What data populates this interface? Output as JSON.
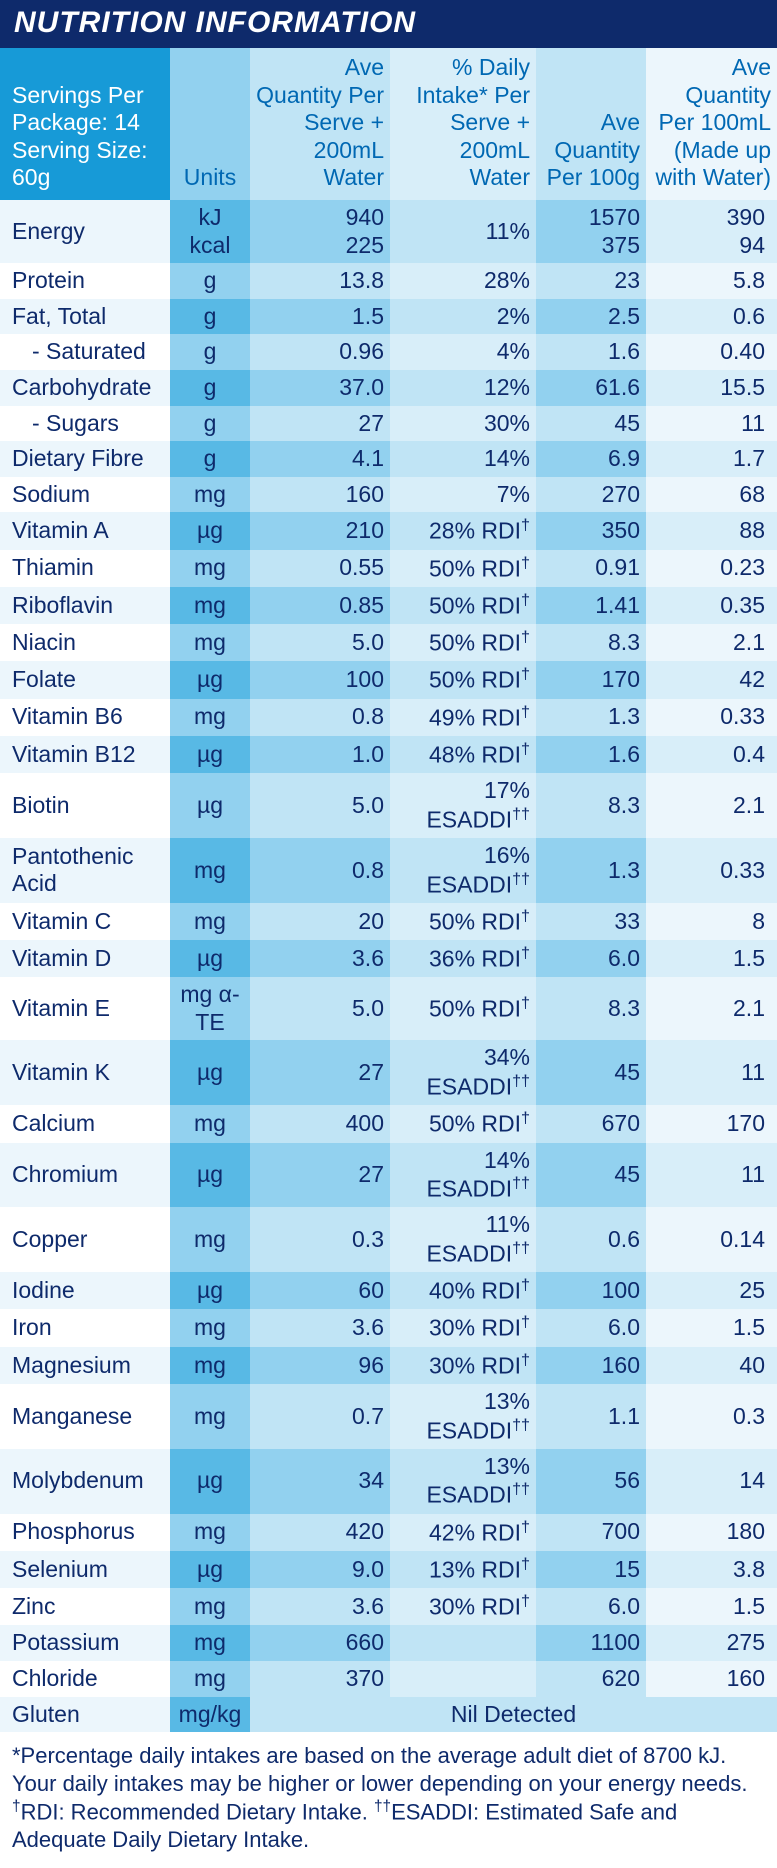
{
  "title": "NUTRITION INFORMATION",
  "servings_line1": "Servings Per Package: 14",
  "servings_line2": "Serving Size: 60g",
  "headers": {
    "units": "Units",
    "c3": "Ave Quantity Per Serve + 200mL Water",
    "c4": "% Daily Intake* Per Serve + 200mL Water",
    "c5": "Ave Quantity Per 100g",
    "c6": "Ave Quantity Per 100mL (Made up with Water)"
  },
  "rows": [
    {
      "name": "Energy",
      "unit": "kJ\nkcal",
      "serve": "940\n225",
      "di": "11%",
      "per100g": "1570\n375",
      "per100ml": "390\n94"
    },
    {
      "name": "Protein",
      "unit": "g",
      "serve": "13.8",
      "di": "28%",
      "per100g": "23",
      "per100ml": "5.8"
    },
    {
      "name": "Fat, Total",
      "unit": "g",
      "serve": "1.5",
      "di": "2%",
      "per100g": "2.5",
      "per100ml": "0.6"
    },
    {
      "name": "   - Saturated",
      "indent": true,
      "unit": "g",
      "serve": "0.96",
      "di": "4%",
      "per100g": "1.6",
      "per100ml": "0.40"
    },
    {
      "name": "Carbohydrate",
      "unit": "g",
      "serve": "37.0",
      "di": "12%",
      "per100g": "61.6",
      "per100ml": "15.5"
    },
    {
      "name": "   - Sugars",
      "indent": true,
      "unit": "g",
      "serve": "27",
      "di": "30%",
      "per100g": "45",
      "per100ml": "11"
    },
    {
      "name": "Dietary Fibre",
      "unit": "g",
      "serve": "4.1",
      "di": "14%",
      "per100g": "6.9",
      "per100ml": "1.7"
    },
    {
      "name": "Sodium",
      "unit": "mg",
      "serve": "160",
      "di": "7%",
      "per100g": "270",
      "per100ml": "68"
    },
    {
      "name": "Vitamin A",
      "unit": "µg",
      "serve": "210",
      "di": "28% RDI†",
      "per100g": "350",
      "per100ml": "88"
    },
    {
      "name": "Thiamin",
      "unit": "mg",
      "serve": "0.55",
      "di": "50% RDI†",
      "per100g": "0.91",
      "per100ml": "0.23"
    },
    {
      "name": "Riboflavin",
      "unit": "mg",
      "serve": "0.85",
      "di": "50% RDI†",
      "per100g": "1.41",
      "per100ml": "0.35"
    },
    {
      "name": "Niacin",
      "unit": "mg",
      "serve": "5.0",
      "di": "50% RDI†",
      "per100g": "8.3",
      "per100ml": "2.1"
    },
    {
      "name": "Folate",
      "unit": "µg",
      "serve": "100",
      "di": "50% RDI†",
      "per100g": "170",
      "per100ml": "42"
    },
    {
      "name": "Vitamin B6",
      "unit": "mg",
      "serve": "0.8",
      "di": "49% RDI†",
      "per100g": "1.3",
      "per100ml": "0.33"
    },
    {
      "name": "Vitamin B12",
      "unit": "µg",
      "serve": "1.0",
      "di": "48% RDI†",
      "per100g": "1.6",
      "per100ml": "0.4"
    },
    {
      "name": "Biotin",
      "unit": "µg",
      "serve": "5.0",
      "di": "17% ESADDI††",
      "per100g": "8.3",
      "per100ml": "2.1"
    },
    {
      "name": "Pantothenic Acid",
      "unit": "mg",
      "serve": "0.8",
      "di": "16% ESADDI††",
      "per100g": "1.3",
      "per100ml": "0.33"
    },
    {
      "name": "Vitamin C",
      "unit": "mg",
      "serve": "20",
      "di": "50% RDI†",
      "per100g": "33",
      "per100ml": "8"
    },
    {
      "name": "Vitamin D",
      "unit": "µg",
      "serve": "3.6",
      "di": "36% RDI†",
      "per100g": "6.0",
      "per100ml": "1.5"
    },
    {
      "name": "Vitamin E",
      "unit": "mg α-TE",
      "serve": "5.0",
      "di": "50% RDI†",
      "per100g": "8.3",
      "per100ml": "2.1"
    },
    {
      "name": "Vitamin K",
      "unit": "µg",
      "serve": "27",
      "di": "34% ESADDI††",
      "per100g": "45",
      "per100ml": "11"
    },
    {
      "name": "Calcium",
      "unit": "mg",
      "serve": "400",
      "di": "50% RDI†",
      "per100g": "670",
      "per100ml": "170"
    },
    {
      "name": "Chromium",
      "unit": "µg",
      "serve": "27",
      "di": "14% ESADDI††",
      "per100g": "45",
      "per100ml": "11"
    },
    {
      "name": "Copper",
      "unit": "mg",
      "serve": "0.3",
      "di": "11% ESADDI††",
      "per100g": "0.6",
      "per100ml": "0.14"
    },
    {
      "name": "Iodine",
      "unit": "µg",
      "serve": "60",
      "di": "40% RDI†",
      "per100g": "100",
      "per100ml": "25"
    },
    {
      "name": "Iron",
      "unit": "mg",
      "serve": "3.6",
      "di": "30% RDI†",
      "per100g": "6.0",
      "per100ml": "1.5"
    },
    {
      "name": "Magnesium",
      "unit": "mg",
      "serve": "96",
      "di": "30% RDI†",
      "per100g": "160",
      "per100ml": "40"
    },
    {
      "name": "Manganese",
      "unit": "mg",
      "serve": "0.7",
      "di": "13% ESADDI††",
      "per100g": "1.1",
      "per100ml": "0.3"
    },
    {
      "name": "Molybdenum",
      "unit": "µg",
      "serve": "34",
      "di": "13% ESADDI††",
      "per100g": "56",
      "per100ml": "14"
    },
    {
      "name": "Phosphorus",
      "unit": "mg",
      "serve": "420",
      "di": "42% RDI†",
      "per100g": "700",
      "per100ml": "180"
    },
    {
      "name": "Selenium",
      "unit": "µg",
      "serve": "9.0",
      "di": "13% RDI†",
      "per100g": "15",
      "per100ml": "3.8"
    },
    {
      "name": "Zinc",
      "unit": "mg",
      "serve": "3.6",
      "di": "30% RDI†",
      "per100g": "6.0",
      "per100ml": "1.5"
    },
    {
      "name": "Potassium",
      "unit": "mg",
      "serve": "660",
      "di": "",
      "per100g": "1100",
      "per100ml": "275"
    },
    {
      "name": "Chloride",
      "unit": "mg",
      "serve": "370",
      "di": "",
      "per100g": "620",
      "per100ml": "160"
    },
    {
      "name": "Gluten",
      "unit": "mg/kg",
      "merged": "Nil Detected"
    }
  ],
  "footnote": "*Percentage daily intakes are based on the average adult diet of 8700 kJ. Your daily intakes may be higher or lower depending on your energy needs. †RDI: Recommended Dietary Intake. ††ESADDI: Estimated Safe and Adequate Daily Dietary Intake."
}
